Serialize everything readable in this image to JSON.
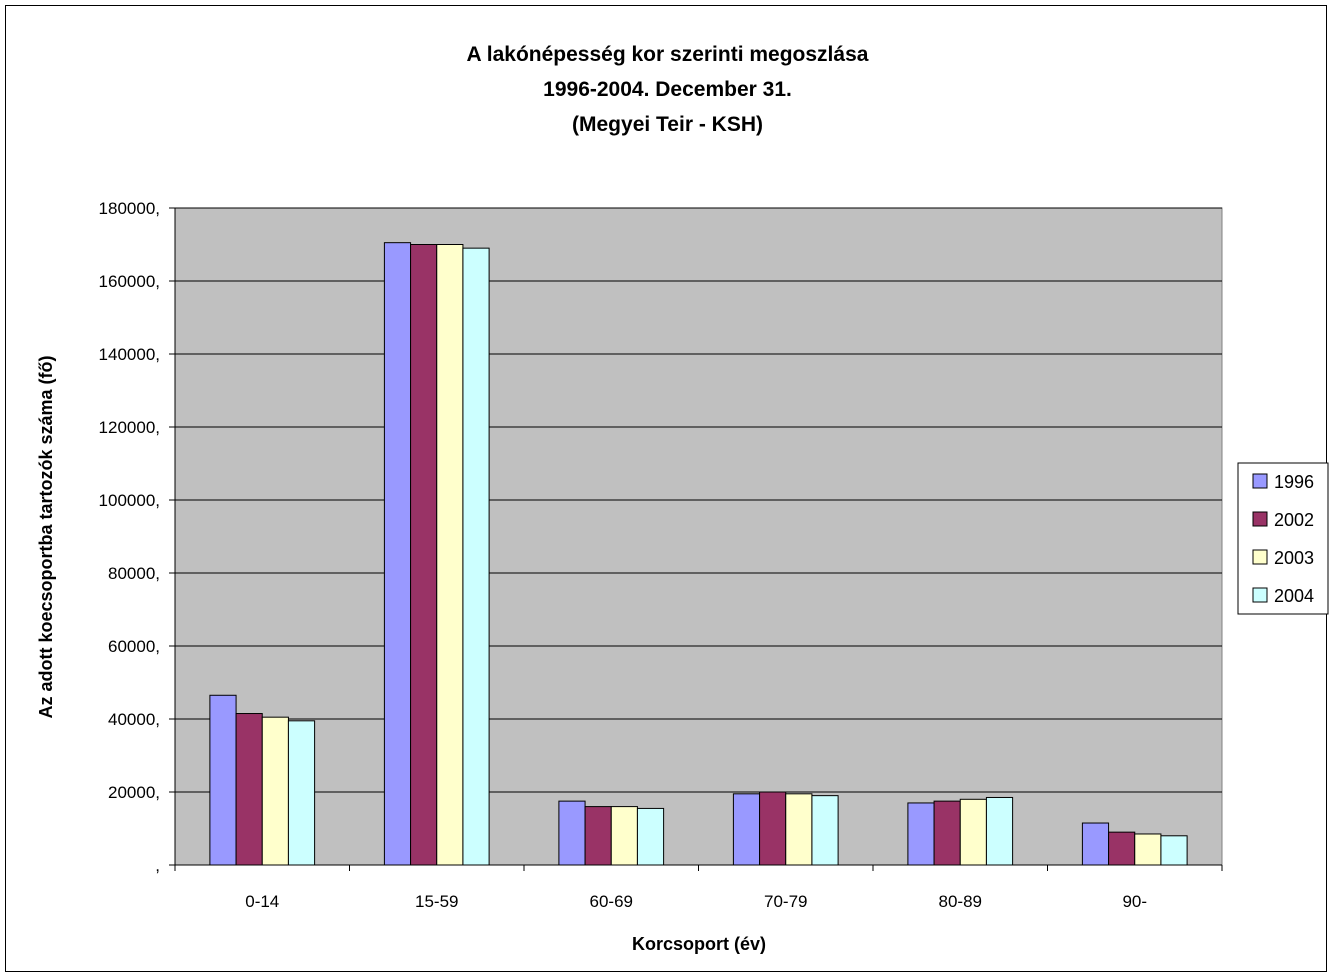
{
  "chart_data": {
    "type": "bar",
    "title": [
      "A lakónépesség kor szerinti megoszlása",
      "1996-2004. December 31.",
      "(Megyei Teir - KSH)"
    ],
    "xlabel": "Korcsoport (év)",
    "ylabel": "Az adott koecsoportba tartozók száma (fő)",
    "categories": [
      "0-14",
      "15-59",
      "60-69",
      "70-79",
      "80-89",
      "90-"
    ],
    "ylim": [
      0,
      180000
    ],
    "y_ticks": [
      ",",
      "20000,",
      "40000,",
      "60000,",
      "80000,",
      "100000,",
      "120000,",
      "140000,",
      "160000,",
      "180000,"
    ],
    "grid": true,
    "legend_position": "right",
    "plot_background": "#C0C0C0",
    "series": [
      {
        "name": "1996",
        "color": "#9999FF",
        "values": [
          46500,
          170500,
          17500,
          19500,
          17000,
          11500
        ]
      },
      {
        "name": "2002",
        "color": "#993366",
        "values": [
          41500,
          170000,
          16000,
          20000,
          17500,
          9000
        ]
      },
      {
        "name": "2003",
        "color": "#FFFFCC",
        "values": [
          40500,
          170000,
          16000,
          19500,
          18000,
          8500
        ]
      },
      {
        "name": "2004",
        "color": "#CCFFFF",
        "values": [
          39500,
          169000,
          15500,
          19000,
          18500,
          8000
        ]
      }
    ]
  }
}
